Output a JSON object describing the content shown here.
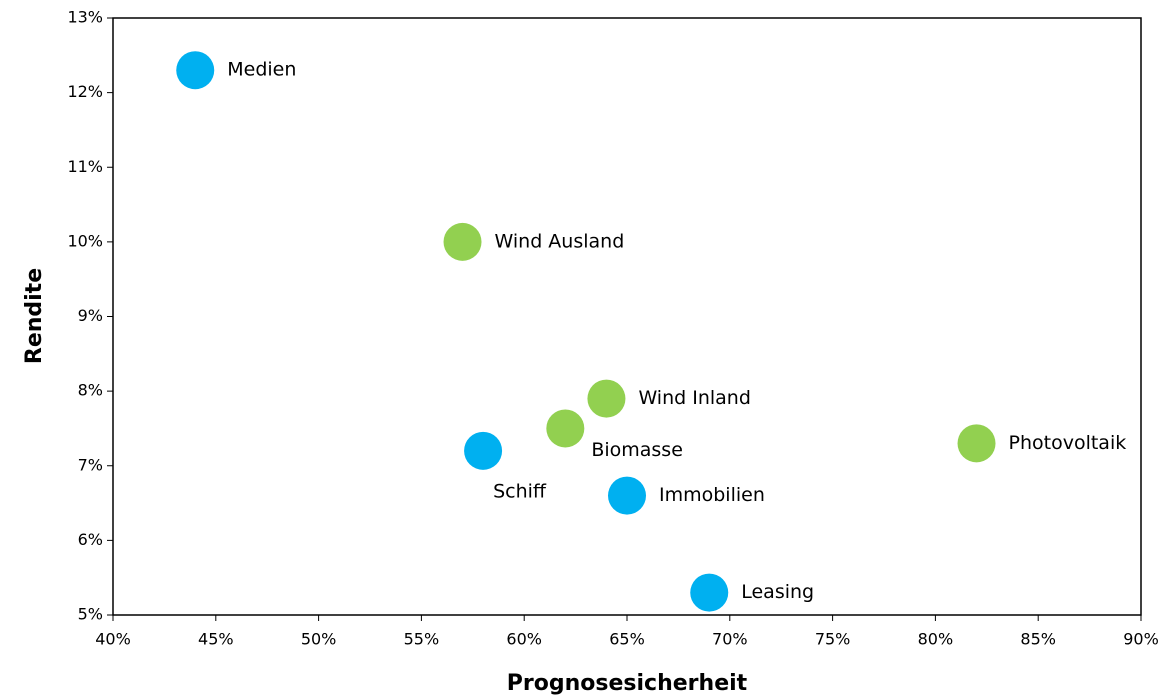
{
  "chart_data": {
    "type": "scatter",
    "x_label": "Prognosesicherheit",
    "y_label": "Rendite",
    "point_labels": [
      "Medien",
      "Wind Ausland",
      "Wind Inland",
      "Biomasse",
      "Schiff",
      "Immobilien",
      "Leasing",
      "Photovoltaik"
    ],
    "x": [
      44,
      57,
      64,
      62,
      58,
      65,
      69,
      82
    ],
    "values": [
      12.3,
      10.0,
      7.9,
      7.5,
      7.2,
      6.6,
      5.3,
      7.3
    ],
    "colors": [
      "#00b0f0",
      "#92d050",
      "#92d050",
      "#92d050",
      "#00b0f0",
      "#00b0f0",
      "#00b0f0",
      "#92d050"
    ],
    "xlim": [
      40,
      90
    ],
    "xticks": [
      {
        "value": 40,
        "label": "40%"
      },
      {
        "value": 45,
        "label": "45%"
      },
      {
        "value": 50,
        "label": "50%"
      },
      {
        "value": 55,
        "label": "55%"
      },
      {
        "value": 60,
        "label": "60%"
      },
      {
        "value": 65,
        "label": "65%"
      },
      {
        "value": 70,
        "label": "70%"
      },
      {
        "value": 75,
        "label": "75%"
      },
      {
        "value": 80,
        "label": "80%"
      },
      {
        "value": 85,
        "label": "85%"
      },
      {
        "value": 90,
        "label": "90%"
      }
    ],
    "ylim": [
      5,
      13
    ],
    "yticks": [
      {
        "value": 5,
        "label": "5%"
      },
      {
        "value": 6,
        "label": "6%"
      },
      {
        "value": 7,
        "label": "7%"
      },
      {
        "value": 8,
        "label": "8%"
      },
      {
        "value": 9,
        "label": "9%"
      },
      {
        "value": 10,
        "label": "10%"
      },
      {
        "value": 11,
        "label": "11%"
      },
      {
        "value": 12,
        "label": "12%"
      },
      {
        "value": 13,
        "label": "13%"
      }
    ],
    "grid": false
  }
}
